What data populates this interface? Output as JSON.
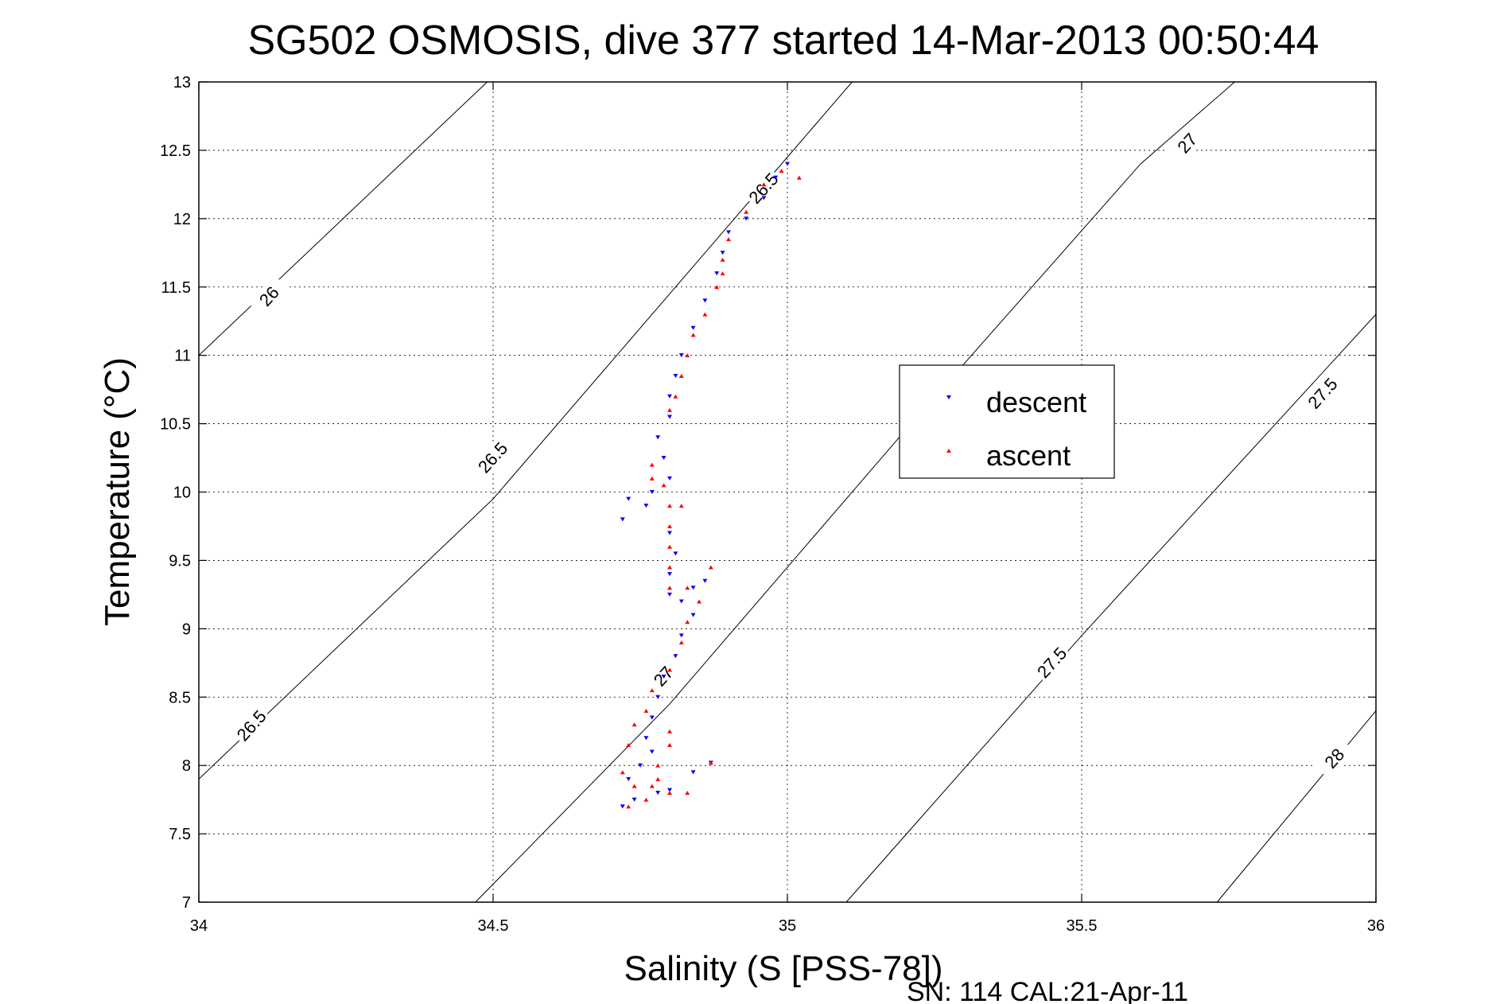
{
  "chart_data": {
    "type": "scatter",
    "title": "SG502 OSMOSIS, dive 377 started 14-Mar-2013 00:50:44",
    "xlabel": "Salinity (S [PSS-78])",
    "ylabel": "Temperature (°C)",
    "footer": "SN: 114  CAL:21-Apr-11",
    "xlim": [
      34,
      36
    ],
    "ylim": [
      7,
      13
    ],
    "xticks": [
      "34",
      "34.5",
      "35",
      "35.5",
      "36"
    ],
    "yticks": [
      "7",
      "7.5",
      "8",
      "8.5",
      "9",
      "9.5",
      "10",
      "10.5",
      "11",
      "11.5",
      "12",
      "12.5",
      "13"
    ],
    "grid": true,
    "legend": {
      "position": "center-right",
      "entries": [
        "descent",
        "ascent"
      ]
    },
    "contours": [
      {
        "level": "26",
        "points": [
          [
            34.0,
            11.0
          ],
          [
            34.49,
            13.0
          ]
        ],
        "labels": [
          {
            "x": 34.12,
            "y": 11.43
          }
        ]
      },
      {
        "level": "26.5",
        "points": [
          [
            34.0,
            7.9
          ],
          [
            34.5,
            9.95
          ],
          [
            35.0,
            12.45
          ],
          [
            35.11,
            13.0
          ]
        ],
        "labels": [
          {
            "x": 34.09,
            "y": 8.29
          },
          {
            "x": 34.5,
            "y": 10.25
          },
          {
            "x": 34.96,
            "y": 12.22
          }
        ]
      },
      {
        "level": "27",
        "points": [
          [
            34.47,
            7.0
          ],
          [
            34.8,
            8.45
          ],
          [
            35.2,
            10.45
          ],
          [
            35.6,
            12.4
          ],
          [
            35.76,
            13.0
          ]
        ],
        "labels": [
          {
            "x": 34.79,
            "y": 8.65
          },
          {
            "x": 35.68,
            "y": 12.55
          }
        ]
      },
      {
        "level": "27.5",
        "points": [
          [
            35.1,
            7.0
          ],
          [
            35.5,
            8.95
          ],
          [
            36.0,
            11.3
          ]
        ],
        "labels": [
          {
            "x": 35.45,
            "y": 8.75
          },
          {
            "x": 35.91,
            "y": 10.72
          }
        ]
      },
      {
        "level": "28",
        "points": [
          [
            35.73,
            7.0
          ],
          [
            36.0,
            8.4
          ]
        ],
        "labels": [
          {
            "x": 35.93,
            "y": 8.05
          }
        ]
      }
    ],
    "series": [
      {
        "name": "descent",
        "color": "#0000ff",
        "marker": "triangle-down",
        "points": [
          [
            35.0,
            12.4
          ],
          [
            34.98,
            12.3
          ],
          [
            34.96,
            12.15
          ],
          [
            34.93,
            12.0
          ],
          [
            34.9,
            11.9
          ],
          [
            34.89,
            11.75
          ],
          [
            34.88,
            11.6
          ],
          [
            34.86,
            11.4
          ],
          [
            34.84,
            11.2
          ],
          [
            34.82,
            11.0
          ],
          [
            34.81,
            10.85
          ],
          [
            34.8,
            10.7
          ],
          [
            34.8,
            10.55
          ],
          [
            34.78,
            10.4
          ],
          [
            34.79,
            10.25
          ],
          [
            34.8,
            10.1
          ],
          [
            34.77,
            10.0
          ],
          [
            34.73,
            9.95
          ],
          [
            34.72,
            9.8
          ],
          [
            34.76,
            9.9
          ],
          [
            34.8,
            9.7
          ],
          [
            34.81,
            9.55
          ],
          [
            34.8,
            9.4
          ],
          [
            34.8,
            9.25
          ],
          [
            34.82,
            9.2
          ],
          [
            34.84,
            9.3
          ],
          [
            34.86,
            9.35
          ],
          [
            34.84,
            9.1
          ],
          [
            34.82,
            8.95
          ],
          [
            34.81,
            8.8
          ],
          [
            34.79,
            8.65
          ],
          [
            34.78,
            8.5
          ],
          [
            34.77,
            8.35
          ],
          [
            34.76,
            8.2
          ],
          [
            34.77,
            8.1
          ],
          [
            34.75,
            8.0
          ],
          [
            34.73,
            7.9
          ],
          [
            34.72,
            7.7
          ],
          [
            34.74,
            7.75
          ],
          [
            34.78,
            7.8
          ],
          [
            34.8,
            7.82
          ],
          [
            34.84,
            7.95
          ],
          [
            34.87,
            8.02
          ]
        ]
      },
      {
        "name": "ascent",
        "color": "#ff0000",
        "marker": "triangle-up",
        "points": [
          [
            34.99,
            12.35
          ],
          [
            35.02,
            12.3
          ],
          [
            34.96,
            12.25
          ],
          [
            34.93,
            12.05
          ],
          [
            34.9,
            11.85
          ],
          [
            34.89,
            11.7
          ],
          [
            34.89,
            11.6
          ],
          [
            34.88,
            11.5
          ],
          [
            34.86,
            11.3
          ],
          [
            34.84,
            11.15
          ],
          [
            34.83,
            11.0
          ],
          [
            34.82,
            10.85
          ],
          [
            34.81,
            10.7
          ],
          [
            34.8,
            10.6
          ],
          [
            34.77,
            10.2
          ],
          [
            34.77,
            10.1
          ],
          [
            34.79,
            10.05
          ],
          [
            34.8,
            9.9
          ],
          [
            34.82,
            9.9
          ],
          [
            34.8,
            9.75
          ],
          [
            34.8,
            9.6
          ],
          [
            34.8,
            9.45
          ],
          [
            34.8,
            9.3
          ],
          [
            34.83,
            9.3
          ],
          [
            34.87,
            9.45
          ],
          [
            34.85,
            9.2
          ],
          [
            34.83,
            9.05
          ],
          [
            34.82,
            8.9
          ],
          [
            34.8,
            8.7
          ],
          [
            34.77,
            8.55
          ],
          [
            34.76,
            8.4
          ],
          [
            34.74,
            8.3
          ],
          [
            34.73,
            8.15
          ],
          [
            34.72,
            7.95
          ],
          [
            34.74,
            7.85
          ],
          [
            34.77,
            7.85
          ],
          [
            34.78,
            8.0
          ],
          [
            34.8,
            8.15
          ],
          [
            34.8,
            8.25
          ],
          [
            34.78,
            7.9
          ],
          [
            34.8,
            7.8
          ],
          [
            34.83,
            7.8
          ],
          [
            34.87,
            8.02
          ],
          [
            34.73,
            7.7
          ],
          [
            34.76,
            7.75
          ]
        ]
      }
    ]
  }
}
